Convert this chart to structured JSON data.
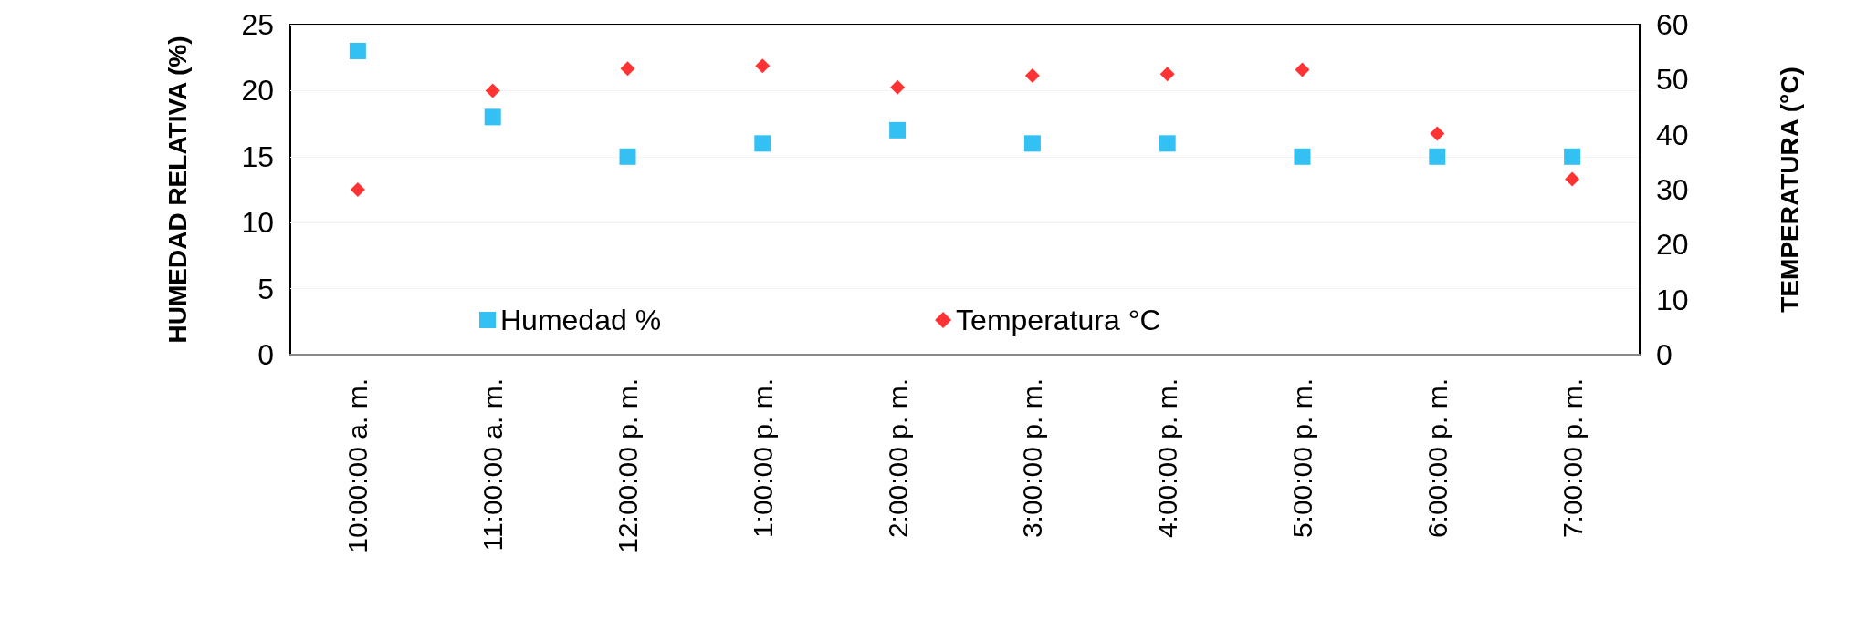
{
  "chart_data": {
    "type": "scatter",
    "ylabel": "HUMEDAD RELATIVA (%)",
    "y2label": "TEMPERATURA (°C)",
    "categories": [
      "10:00:00 a. m.",
      "11:00:00 a. m.",
      "12:00:00 p. m.",
      "1:00:00 p. m.",
      "2:00:00 p. m.",
      "3:00:00 p. m.",
      "4:00:00 p. m.",
      "5:00:00 p. m.",
      "6:00:00 p. m.",
      "7:00:00 p. m."
    ],
    "series": [
      {
        "name": "Humedad %",
        "color": "#00b0f0",
        "marker": "square",
        "values": [
          23,
          18,
          15,
          16,
          17,
          16,
          16,
          15,
          15,
          15
        ]
      },
      {
        "name": "Temperatura °C",
        "color": "#ff0000",
        "marker": "diamond",
        "axis": "y2",
        "values": [
          30,
          48,
          52,
          52.5,
          48.6,
          50.7,
          51,
          51.8,
          40.2,
          31.9
        ]
      }
    ],
    "ylim": [
      0,
      25
    ],
    "yticks": [
      0,
      5,
      10,
      15,
      20,
      25
    ],
    "y2lim": [
      0,
      60
    ],
    "y2ticks": [
      0,
      10,
      20,
      30,
      40,
      50,
      60
    ],
    "grid": "y",
    "legend": "bottom"
  }
}
